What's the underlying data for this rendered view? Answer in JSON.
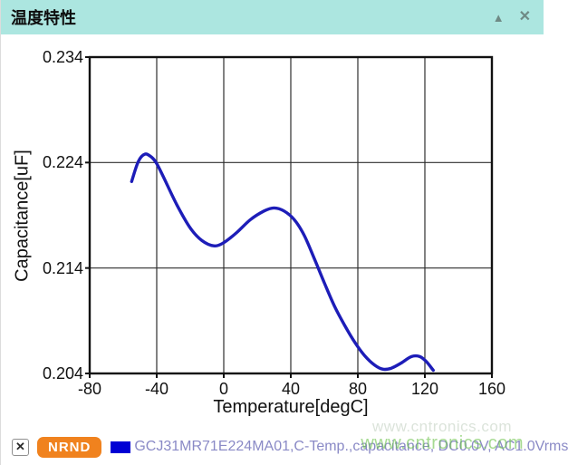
{
  "header": {
    "title": "温度特性"
  },
  "icons": {
    "collapse": "▲",
    "close": "✕",
    "x_mark": "✕"
  },
  "colors": {
    "titlebar_bg": "#ace6e0",
    "titlebar_icons": "#6f8a85",
    "curve": "#1d1db8",
    "legend_swatch": "#0000d4",
    "badge_bg": "#f0821e",
    "legend_text": "#8a8ac6",
    "watermark": "#6cc24a"
  },
  "legend": {
    "badge": "NRND",
    "series_label": "GCJ31MR71E224MA01,C-Temp.,capacitance, DC0.0V, AC1.0Vrms"
  },
  "watermark": {
    "text": "www.cntronics.com"
  },
  "chart_data": {
    "type": "line",
    "title": "温度特性",
    "xlabel": "Temperature[degC]",
    "ylabel": "Capacitance[uF]",
    "xlim": [
      -80,
      160
    ],
    "ylim": [
      0.204,
      0.234
    ],
    "xticks": [
      -80,
      -40,
      0,
      40,
      80,
      120,
      160
    ],
    "xtick_labels": [
      "-80",
      "-40",
      "0",
      "40",
      "80",
      "120",
      "160"
    ],
    "yticks": [
      0.234,
      0.224,
      0.214,
      0.204
    ],
    "ytick_labels": [
      "0.234",
      "0.224",
      "0.214",
      "0.204"
    ],
    "grid": true,
    "legend_position": "bottom",
    "series": [
      {
        "name": "GCJ31MR71E224MA01,C-Temp.,capacitance, DC0.0V, AC1.0Vrms",
        "color": "#1d1db8",
        "points": [
          [
            -55,
            0.2222
          ],
          [
            -51,
            0.2241
          ],
          [
            -47,
            0.2248
          ],
          [
            -43,
            0.2245
          ],
          [
            -40,
            0.2239
          ],
          [
            -35,
            0.2223
          ],
          [
            -28,
            0.22
          ],
          [
            -20,
            0.2178
          ],
          [
            -13,
            0.2166
          ],
          [
            -6,
            0.2161
          ],
          [
            0,
            0.2164
          ],
          [
            8,
            0.2174
          ],
          [
            16,
            0.2186
          ],
          [
            24,
            0.2194
          ],
          [
            30,
            0.2197
          ],
          [
            36,
            0.2194
          ],
          [
            42,
            0.2186
          ],
          [
            48,
            0.2171
          ],
          [
            54,
            0.2149
          ],
          [
            60,
            0.2126
          ],
          [
            66,
            0.2104
          ],
          [
            72,
            0.2086
          ],
          [
            78,
            0.207
          ],
          [
            84,
            0.2057
          ],
          [
            90,
            0.2048
          ],
          [
            95,
            0.2044
          ],
          [
            100,
            0.2045
          ],
          [
            106,
            0.205
          ],
          [
            112,
            0.2056
          ],
          [
            117,
            0.2056
          ],
          [
            121,
            0.2051
          ],
          [
            125,
            0.2043
          ]
        ]
      }
    ]
  }
}
